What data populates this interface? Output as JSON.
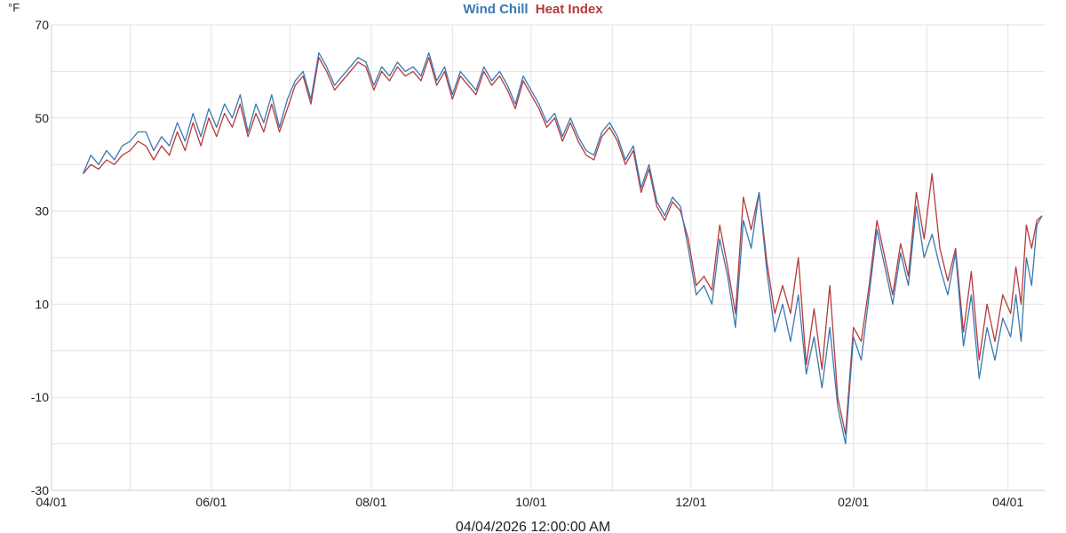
{
  "chart_data": {
    "type": "line",
    "title_parts": [
      {
        "text": "Wind Chill",
        "color": "#3a78b0"
      },
      {
        "text": "Heat Index",
        "color": "#b63a3a"
      }
    ],
    "y_unit": "°F",
    "footer": "04/04/2026 12:00:00 AM",
    "ylim": [
      -30,
      70
    ],
    "y_ticks": [
      70,
      50,
      30,
      10,
      -10,
      -30
    ],
    "x_range": [
      "2025-04-01",
      "2026-04-15"
    ],
    "x_ticks": [
      {
        "date": "2025-04-01",
        "label": "04/01"
      },
      {
        "date": "2025-06-01",
        "label": "06/01"
      },
      {
        "date": "2025-08-01",
        "label": "08/01"
      },
      {
        "date": "2025-10-01",
        "label": "10/01"
      },
      {
        "date": "2025-12-01",
        "label": "12/01"
      },
      {
        "date": "2026-02-01",
        "label": "02/01"
      },
      {
        "date": "2026-04-01",
        "label": "04/01"
      }
    ],
    "grid": true,
    "series": [
      {
        "name": "Wind Chill",
        "color": "#3a78b0",
        "points": [
          [
            "2025-04-13",
            38
          ],
          [
            "2025-04-16",
            42
          ],
          [
            "2025-04-19",
            40
          ],
          [
            "2025-04-22",
            43
          ],
          [
            "2025-04-25",
            41
          ],
          [
            "2025-04-28",
            44
          ],
          [
            "2025-05-01",
            45
          ],
          [
            "2025-05-04",
            47
          ],
          [
            "2025-05-07",
            47
          ],
          [
            "2025-05-10",
            43
          ],
          [
            "2025-05-13",
            46
          ],
          [
            "2025-05-16",
            44
          ],
          [
            "2025-05-19",
            49
          ],
          [
            "2025-05-22",
            45
          ],
          [
            "2025-05-25",
            51
          ],
          [
            "2025-05-28",
            46
          ],
          [
            "2025-05-31",
            52
          ],
          [
            "2025-06-03",
            48
          ],
          [
            "2025-06-06",
            53
          ],
          [
            "2025-06-09",
            50
          ],
          [
            "2025-06-12",
            55
          ],
          [
            "2025-06-15",
            47
          ],
          [
            "2025-06-18",
            53
          ],
          [
            "2025-06-21",
            49
          ],
          [
            "2025-06-24",
            55
          ],
          [
            "2025-06-27",
            48
          ],
          [
            "2025-06-30",
            54
          ],
          [
            "2025-07-03",
            58
          ],
          [
            "2025-07-06",
            60
          ],
          [
            "2025-07-09",
            54
          ],
          [
            "2025-07-12",
            64
          ],
          [
            "2025-07-15",
            61
          ],
          [
            "2025-07-18",
            57
          ],
          [
            "2025-07-21",
            59
          ],
          [
            "2025-07-24",
            61
          ],
          [
            "2025-07-27",
            63
          ],
          [
            "2025-07-30",
            62
          ],
          [
            "2025-08-02",
            57
          ],
          [
            "2025-08-05",
            61
          ],
          [
            "2025-08-08",
            59
          ],
          [
            "2025-08-11",
            62
          ],
          [
            "2025-08-14",
            60
          ],
          [
            "2025-08-17",
            61
          ],
          [
            "2025-08-20",
            59
          ],
          [
            "2025-08-23",
            64
          ],
          [
            "2025-08-26",
            58
          ],
          [
            "2025-08-29",
            61
          ],
          [
            "2025-09-01",
            55
          ],
          [
            "2025-09-04",
            60
          ],
          [
            "2025-09-07",
            58
          ],
          [
            "2025-09-10",
            56
          ],
          [
            "2025-09-13",
            61
          ],
          [
            "2025-09-16",
            58
          ],
          [
            "2025-09-19",
            60
          ],
          [
            "2025-09-22",
            57
          ],
          [
            "2025-09-25",
            53
          ],
          [
            "2025-09-28",
            59
          ],
          [
            "2025-10-01",
            56
          ],
          [
            "2025-10-04",
            53
          ],
          [
            "2025-10-07",
            49
          ],
          [
            "2025-10-10",
            51
          ],
          [
            "2025-10-13",
            46
          ],
          [
            "2025-10-16",
            50
          ],
          [
            "2025-10-19",
            46
          ],
          [
            "2025-10-22",
            43
          ],
          [
            "2025-10-25",
            42
          ],
          [
            "2025-10-28",
            47
          ],
          [
            "2025-10-31",
            49
          ],
          [
            "2025-11-03",
            46
          ],
          [
            "2025-11-06",
            41
          ],
          [
            "2025-11-09",
            44
          ],
          [
            "2025-11-12",
            35
          ],
          [
            "2025-11-15",
            40
          ],
          [
            "2025-11-18",
            32
          ],
          [
            "2025-11-21",
            29
          ],
          [
            "2025-11-24",
            33
          ],
          [
            "2025-11-27",
            31
          ],
          [
            "2025-11-30",
            22
          ],
          [
            "2025-12-03",
            12
          ],
          [
            "2025-12-06",
            14
          ],
          [
            "2025-12-09",
            10
          ],
          [
            "2025-12-12",
            24
          ],
          [
            "2025-12-15",
            16
          ],
          [
            "2025-12-18",
            5
          ],
          [
            "2025-12-21",
            28
          ],
          [
            "2025-12-24",
            22
          ],
          [
            "2025-12-27",
            34
          ],
          [
            "2025-12-30",
            17
          ],
          [
            "2026-01-02",
            4
          ],
          [
            "2026-01-05",
            10
          ],
          [
            "2026-01-08",
            2
          ],
          [
            "2026-01-11",
            12
          ],
          [
            "2026-01-14",
            -5
          ],
          [
            "2026-01-17",
            3
          ],
          [
            "2026-01-20",
            -8
          ],
          [
            "2026-01-23",
            5
          ],
          [
            "2026-01-26",
            -12
          ],
          [
            "2026-01-29",
            -20
          ],
          [
            "2026-02-01",
            3
          ],
          [
            "2026-02-04",
            -2
          ],
          [
            "2026-02-07",
            12
          ],
          [
            "2026-02-10",
            26
          ],
          [
            "2026-02-13",
            18
          ],
          [
            "2026-02-16",
            10
          ],
          [
            "2026-02-19",
            21
          ],
          [
            "2026-02-22",
            14
          ],
          [
            "2026-02-25",
            31
          ],
          [
            "2026-02-28",
            20
          ],
          [
            "2026-03-03",
            25
          ],
          [
            "2026-03-06",
            18
          ],
          [
            "2026-03-09",
            12
          ],
          [
            "2026-03-12",
            21
          ],
          [
            "2026-03-15",
            1
          ],
          [
            "2026-03-18",
            12
          ],
          [
            "2026-03-21",
            -6
          ],
          [
            "2026-03-24",
            5
          ],
          [
            "2026-03-27",
            -2
          ],
          [
            "2026-03-30",
            7
          ],
          [
            "2026-04-02",
            3
          ],
          [
            "2026-04-04",
            12
          ],
          [
            "2026-04-06",
            2
          ],
          [
            "2026-04-08",
            20
          ],
          [
            "2026-04-10",
            14
          ],
          [
            "2026-04-12",
            27
          ],
          [
            "2026-04-14",
            29
          ]
        ]
      },
      {
        "name": "Heat Index",
        "color": "#b63a3a",
        "points": [
          [
            "2025-04-13",
            38
          ],
          [
            "2025-04-16",
            40
          ],
          [
            "2025-04-19",
            39
          ],
          [
            "2025-04-22",
            41
          ],
          [
            "2025-04-25",
            40
          ],
          [
            "2025-04-28",
            42
          ],
          [
            "2025-05-01",
            43
          ],
          [
            "2025-05-04",
            45
          ],
          [
            "2025-05-07",
            44
          ],
          [
            "2025-05-10",
            41
          ],
          [
            "2025-05-13",
            44
          ],
          [
            "2025-05-16",
            42
          ],
          [
            "2025-05-19",
            47
          ],
          [
            "2025-05-22",
            43
          ],
          [
            "2025-05-25",
            49
          ],
          [
            "2025-05-28",
            44
          ],
          [
            "2025-05-31",
            50
          ],
          [
            "2025-06-03",
            46
          ],
          [
            "2025-06-06",
            51
          ],
          [
            "2025-06-09",
            48
          ],
          [
            "2025-06-12",
            53
          ],
          [
            "2025-06-15",
            46
          ],
          [
            "2025-06-18",
            51
          ],
          [
            "2025-06-21",
            47
          ],
          [
            "2025-06-24",
            53
          ],
          [
            "2025-06-27",
            47
          ],
          [
            "2025-06-30",
            52
          ],
          [
            "2025-07-03",
            57
          ],
          [
            "2025-07-06",
            59
          ],
          [
            "2025-07-09",
            53
          ],
          [
            "2025-07-12",
            63
          ],
          [
            "2025-07-15",
            60
          ],
          [
            "2025-07-18",
            56
          ],
          [
            "2025-07-21",
            58
          ],
          [
            "2025-07-24",
            60
          ],
          [
            "2025-07-27",
            62
          ],
          [
            "2025-07-30",
            61
          ],
          [
            "2025-08-02",
            56
          ],
          [
            "2025-08-05",
            60
          ],
          [
            "2025-08-08",
            58
          ],
          [
            "2025-08-11",
            61
          ],
          [
            "2025-08-14",
            59
          ],
          [
            "2025-08-17",
            60
          ],
          [
            "2025-08-20",
            58
          ],
          [
            "2025-08-23",
            63
          ],
          [
            "2025-08-26",
            57
          ],
          [
            "2025-08-29",
            60
          ],
          [
            "2025-09-01",
            54
          ],
          [
            "2025-09-04",
            59
          ],
          [
            "2025-09-07",
            57
          ],
          [
            "2025-09-10",
            55
          ],
          [
            "2025-09-13",
            60
          ],
          [
            "2025-09-16",
            57
          ],
          [
            "2025-09-19",
            59
          ],
          [
            "2025-09-22",
            56
          ],
          [
            "2025-09-25",
            52
          ],
          [
            "2025-09-28",
            58
          ],
          [
            "2025-10-01",
            55
          ],
          [
            "2025-10-04",
            52
          ],
          [
            "2025-10-07",
            48
          ],
          [
            "2025-10-10",
            50
          ],
          [
            "2025-10-13",
            45
          ],
          [
            "2025-10-16",
            49
          ],
          [
            "2025-10-19",
            45
          ],
          [
            "2025-10-22",
            42
          ],
          [
            "2025-10-25",
            41
          ],
          [
            "2025-10-28",
            46
          ],
          [
            "2025-10-31",
            48
          ],
          [
            "2025-11-03",
            45
          ],
          [
            "2025-11-06",
            40
          ],
          [
            "2025-11-09",
            43
          ],
          [
            "2025-11-12",
            34
          ],
          [
            "2025-11-15",
            39
          ],
          [
            "2025-11-18",
            31
          ],
          [
            "2025-11-21",
            28
          ],
          [
            "2025-11-24",
            32
          ],
          [
            "2025-11-27",
            30
          ],
          [
            "2025-11-30",
            24
          ],
          [
            "2025-12-03",
            14
          ],
          [
            "2025-12-06",
            16
          ],
          [
            "2025-12-09",
            13
          ],
          [
            "2025-12-12",
            27
          ],
          [
            "2025-12-15",
            18
          ],
          [
            "2025-12-18",
            8
          ],
          [
            "2025-12-21",
            33
          ],
          [
            "2025-12-24",
            26
          ],
          [
            "2025-12-27",
            34
          ],
          [
            "2025-12-30",
            19
          ],
          [
            "2026-01-02",
            8
          ],
          [
            "2026-01-05",
            14
          ],
          [
            "2026-01-08",
            8
          ],
          [
            "2026-01-11",
            20
          ],
          [
            "2026-01-14",
            -3
          ],
          [
            "2026-01-17",
            9
          ],
          [
            "2026-01-20",
            -4
          ],
          [
            "2026-01-23",
            14
          ],
          [
            "2026-01-26",
            -10
          ],
          [
            "2026-01-29",
            -18
          ],
          [
            "2026-02-01",
            5
          ],
          [
            "2026-02-04",
            2
          ],
          [
            "2026-02-07",
            14
          ],
          [
            "2026-02-10",
            28
          ],
          [
            "2026-02-13",
            20
          ],
          [
            "2026-02-16",
            12
          ],
          [
            "2026-02-19",
            23
          ],
          [
            "2026-02-22",
            16
          ],
          [
            "2026-02-25",
            34
          ],
          [
            "2026-02-28",
            24
          ],
          [
            "2026-03-03",
            38
          ],
          [
            "2026-03-06",
            22
          ],
          [
            "2026-03-09",
            15
          ],
          [
            "2026-03-12",
            22
          ],
          [
            "2026-03-15",
            4
          ],
          [
            "2026-03-18",
            17
          ],
          [
            "2026-03-21",
            -2
          ],
          [
            "2026-03-24",
            10
          ],
          [
            "2026-03-27",
            2
          ],
          [
            "2026-03-30",
            12
          ],
          [
            "2026-04-02",
            8
          ],
          [
            "2026-04-04",
            18
          ],
          [
            "2026-04-06",
            10
          ],
          [
            "2026-04-08",
            27
          ],
          [
            "2026-04-10",
            22
          ],
          [
            "2026-04-12",
            28
          ],
          [
            "2026-04-14",
            29
          ]
        ]
      }
    ]
  }
}
